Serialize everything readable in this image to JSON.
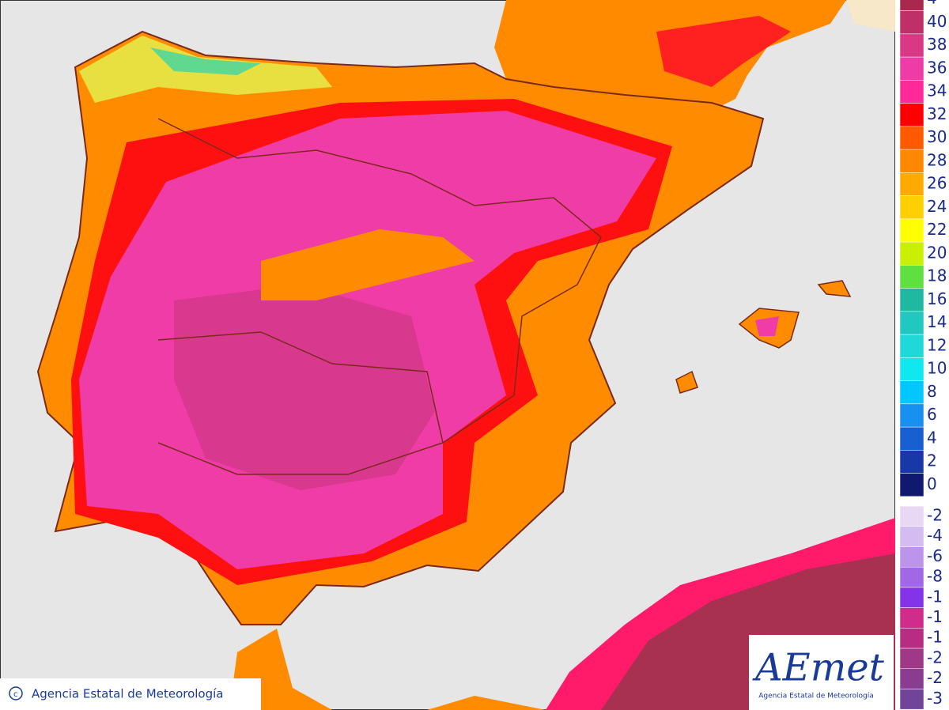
{
  "legend": {
    "items": [
      {
        "label": "4",
        "color": "#a8284e"
      },
      {
        "label": "40",
        "color": "#c03068"
      },
      {
        "label": "38",
        "color": "#d83884"
      },
      {
        "label": "36",
        "color": "#ee3ca6"
      },
      {
        "label": "34",
        "color": "#ff2a9a"
      },
      {
        "label": "32",
        "color": "#ff0000"
      },
      {
        "label": "30",
        "color": "#ff5a00"
      },
      {
        "label": "28",
        "color": "#ff8800"
      },
      {
        "label": "26",
        "color": "#ffaa00"
      },
      {
        "label": "24",
        "color": "#ffd000"
      },
      {
        "label": "22",
        "color": "#ffff00"
      },
      {
        "label": "20",
        "color": "#c8f000"
      },
      {
        "label": "18",
        "color": "#60e040"
      },
      {
        "label": "16",
        "color": "#20b8a0"
      },
      {
        "label": "14",
        "color": "#20c8c0"
      },
      {
        "label": "12",
        "color": "#20d8d8"
      },
      {
        "label": "10",
        "color": "#10e8f0"
      },
      {
        "label": "8",
        "color": "#00c8ff"
      },
      {
        "label": "6",
        "color": "#1890f0"
      },
      {
        "label": "4",
        "color": "#1860d0"
      },
      {
        "label": "2",
        "color": "#1838a8"
      },
      {
        "label": "0",
        "color": "#101870"
      }
    ],
    "negative_items": [
      {
        "label": "-2",
        "color": "#e8d8f4"
      },
      {
        "label": "-4",
        "color": "#d4bcf0"
      },
      {
        "label": "-6",
        "color": "#bc94ec"
      },
      {
        "label": "-8",
        "color": "#a068e4"
      },
      {
        "label": "-1",
        "color": "#8434e8"
      },
      {
        "label": "-1",
        "color": "#d02c8c"
      },
      {
        "label": "-1",
        "color": "#b82c84"
      },
      {
        "label": "-2",
        "color": "#a03888"
      },
      {
        "label": "-2",
        "color": "#8a3c90"
      },
      {
        "label": "-3",
        "color": "#704498"
      }
    ]
  },
  "credit": "Agencia Estatal de Meteorología",
  "logo": {
    "name": "AEmet",
    "subtitle": "Agencia Estatal de Meteorología"
  }
}
